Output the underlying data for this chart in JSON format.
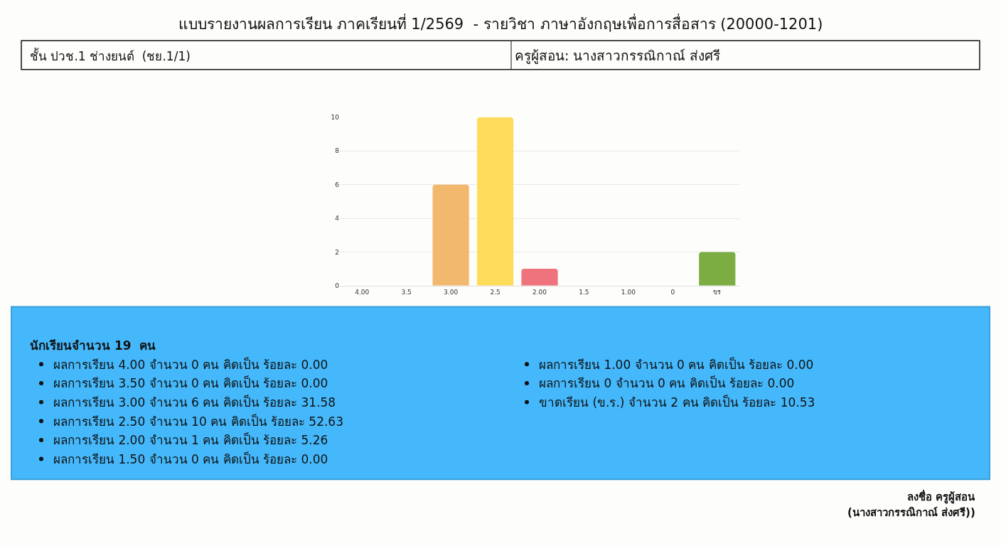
{
  "chart_data": {
    "type": "bar",
    "title": "แบบรายงานผลการเรียน ภาคเรียนที่ 1/2569  - รายวิชา ภาษาอังกฤษเพื่อการสื่อสาร (20000-1201)",
    "categories": [
      "4.00",
      "3.5",
      "3.00",
      "2.5",
      "2.00",
      "1.5",
      "1.00",
      "0",
      "ขร"
    ],
    "values": [
      0,
      0,
      6,
      10,
      1,
      0,
      0,
      0,
      2
    ],
    "colors": [
      "#5b9bd5",
      "#4bc0c0",
      "#f2b96e",
      "#fddc5c",
      "#ef737c",
      "#9966ff",
      "#c9cbcf",
      "#36a2eb",
      "#7cad43"
    ],
    "ylim": [
      0,
      10
    ],
    "yticks": [
      0,
      2,
      4,
      6,
      8,
      10
    ],
    "grid": "y",
    "annotations": [
      "ชั้น ปวช.1 ช่างยนต์  (ชย.1/1)",
      "ครูผู้สอน: นางสาวกรรณิกาณ์ ส่งศรี",
      "นักเรียนจำนวน 19  คน",
      "ผลการเรียน 4.00 จำนวน 0 คน คิดเป็น ร้อยละ 0.00",
      "ผลการเรียน 3.50 จำนวน 0 คน คิดเป็น ร้อยละ 0.00",
      "ผลการเรียน 3.00 จำนวน 6 คน คิดเป็น ร้อยละ 31.58",
      "ผลการเรียน 2.50 จำนวน 10 คน คิดเป็น ร้อยละ 52.63",
      "ผลการเรียน 2.00 จำนวน 1 คน คิดเป็น ร้อยละ 5.26",
      "ผลการเรียน 1.50 จำนวน 0 คน คิดเป็น ร้อยละ 0.00",
      "ผลการเรียน 1.00 จำนวน 0 คน คิดเป็น ร้อยละ 0.00",
      "ผลการเรียน 0 จำนวน 0 คน คิดเป็น ร้อยละ 0.00",
      "ขาดเรียน (ข.ร.) จำนวน 2 คน คิดเป็น ร้อยละ 10.53",
      "ลงชื่อ ครูผู้สอน",
      "(นางสาวกรรณิกาณ์ ส่งศรี))"
    ]
  }
}
